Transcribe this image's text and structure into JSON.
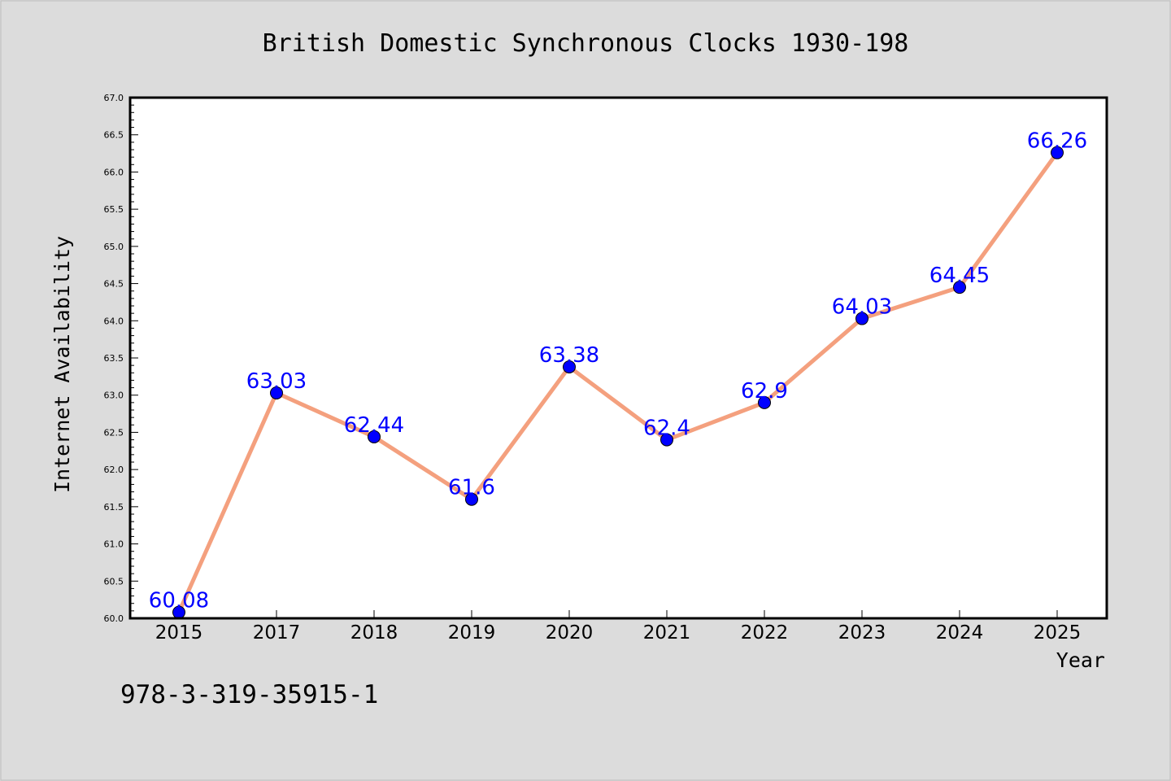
{
  "chart_data": {
    "type": "line",
    "title": "British Domestic Synchronous Clocks 1930-198",
    "xlabel": "Year",
    "ylabel": "Internet Availability",
    "categories": [
      "2015",
      "2017",
      "2018",
      "2019",
      "2020",
      "2021",
      "2022",
      "2023",
      "2024",
      "2025"
    ],
    "series": [
      {
        "values": [
          60.08,
          63.03,
          62.44,
          61.6,
          63.38,
          62.4,
          62.9,
          64.03,
          64.45,
          66.26
        ],
        "data_labels": [
          "60.08",
          "63.03",
          "62.44",
          "61.6",
          "63.38",
          "62.4",
          "62.9",
          "64.03",
          "64.45",
          "66.26"
        ],
        "line_color": "#f4a07e",
        "marker_color": "#0000ff"
      }
    ],
    "ylim": [
      60.0,
      67.0
    ],
    "y_ticks": [
      "60.0",
      "60.5",
      "61.0",
      "61.5",
      "62.0",
      "62.5",
      "63.0",
      "63.5",
      "64.0",
      "64.5",
      "65.0",
      "65.5",
      "66.0",
      "66.5",
      "67.0"
    ],
    "grid": false,
    "legend": "none",
    "label_color": "#0000ff",
    "background": "#dcdcdc",
    "plot_background": "#ffffff"
  },
  "footer": {
    "isbn": "978-3-319-35915-1"
  }
}
